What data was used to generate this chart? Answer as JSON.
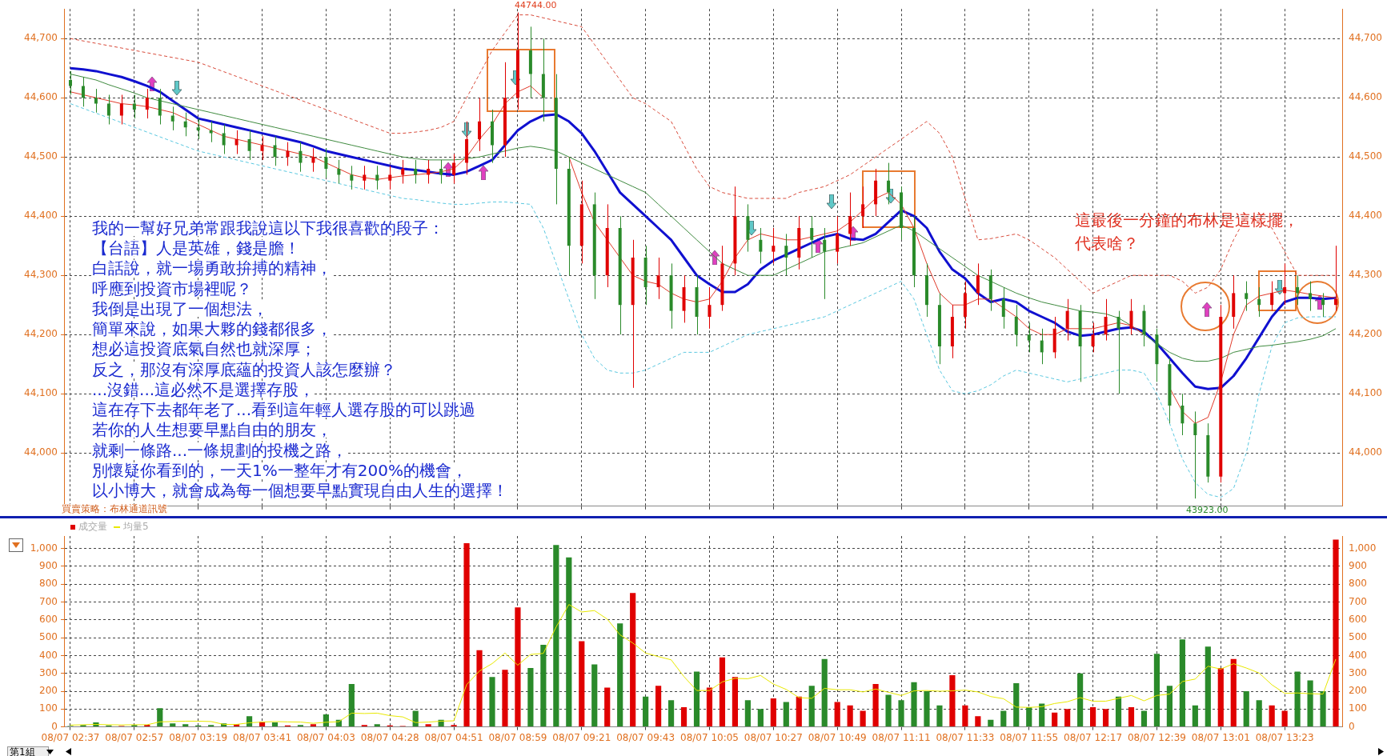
{
  "chart_data": [
    {
      "type": "candlestick",
      "categories": [
        null,
        null,
        null,
        null,
        null,
        null,
        null,
        null,
        null,
        null,
        null,
        null,
        null,
        null,
        null,
        null,
        null,
        null,
        null,
        null,
        null,
        null,
        null,
        null,
        null,
        null,
        null,
        null,
        null,
        null,
        null,
        null,
        null,
        null,
        null,
        null,
        null,
        null,
        null,
        null,
        null,
        null,
        null,
        null,
        null,
        null,
        null,
        null,
        null,
        null,
        null,
        null,
        null,
        null,
        null,
        null,
        null,
        null,
        null,
        null,
        null,
        null,
        null,
        null,
        null,
        null,
        null,
        null,
        null,
        null,
        null,
        null,
        null,
        null,
        null,
        null,
        null,
        null,
        null,
        null,
        null,
        null,
        null,
        null,
        null,
        null,
        null,
        null,
        null,
        null,
        null,
        null,
        null,
        null,
        null,
        null,
        null,
        null,
        null,
        null
      ],
      "ohlc": [
        [
          44630,
          44645,
          44605,
          44620
        ],
        [
          44620,
          44635,
          44585,
          44600
        ],
        [
          44600,
          44615,
          44575,
          44590
        ],
        [
          44590,
          44605,
          44555,
          44570
        ],
        [
          44570,
          44605,
          44555,
          44590
        ],
        [
          44590,
          44605,
          44565,
          44580
        ],
        [
          44580,
          44615,
          44565,
          44600
        ],
        [
          44600,
          44615,
          44555,
          44570
        ],
        [
          44570,
          44585,
          44545,
          44560
        ],
        [
          44560,
          44575,
          44535,
          44550
        ],
        [
          44550,
          44565,
          44530,
          44545
        ],
        [
          44545,
          44560,
          44525,
          44540
        ],
        [
          44540,
          44555,
          44505,
          44520
        ],
        [
          44520,
          44545,
          44505,
          44530
        ],
        [
          44530,
          44545,
          44495,
          44510
        ],
        [
          44510,
          44535,
          44495,
          44520
        ],
        [
          44520,
          44535,
          44485,
          44500
        ],
        [
          44500,
          44525,
          44485,
          44510
        ],
        [
          44510,
          44525,
          44475,
          44490
        ],
        [
          44490,
          44515,
          44475,
          44500
        ],
        [
          44500,
          44515,
          44465,
          44480
        ],
        [
          44480,
          44495,
          44455,
          44470
        ],
        [
          44470,
          44485,
          44445,
          44460
        ],
        [
          44460,
          44485,
          44445,
          44470
        ],
        [
          44470,
          44485,
          44445,
          44460
        ],
        [
          44460,
          44485,
          44445,
          44470
        ],
        [
          44470,
          44495,
          44455,
          44480
        ],
        [
          44480,
          44495,
          44455,
          44470
        ],
        [
          44470,
          44495,
          44455,
          44480
        ],
        [
          44480,
          44495,
          44455,
          44470
        ],
        [
          44470,
          44505,
          44455,
          44490
        ],
        [
          44490,
          44560,
          44470,
          44530
        ],
        [
          44530,
          44600,
          44510,
          44560
        ],
        [
          44560,
          44580,
          44490,
          44520
        ],
        [
          44520,
          44660,
          44500,
          44600
        ],
        [
          44600,
          44744,
          44580,
          44680
        ],
        [
          44680,
          44720,
          44600,
          44640
        ],
        [
          44640,
          44700,
          44560,
          44600
        ],
        [
          44600,
          44640,
          44420,
          44480
        ],
        [
          44480,
          44500,
          44300,
          44350
        ],
        [
          44350,
          44460,
          44320,
          44420
        ],
        [
          44420,
          44440,
          44260,
          44300
        ],
        [
          44300,
          44420,
          44280,
          44380
        ],
        [
          44380,
          44400,
          44200,
          44250
        ],
        [
          44250,
          44360,
          44110,
          44330
        ],
        [
          44330,
          44350,
          44250,
          44280
        ],
        [
          44280,
          44330,
          44260,
          44300
        ],
        [
          44300,
          44320,
          44210,
          44240
        ],
        [
          44240,
          44300,
          44220,
          44280
        ],
        [
          44280,
          44300,
          44200,
          44230
        ],
        [
          44230,
          44280,
          44210,
          44250
        ],
        [
          44250,
          44350,
          44240,
          44320
        ],
        [
          44320,
          44450,
          44300,
          44400
        ],
        [
          44400,
          44420,
          44340,
          44360
        ],
        [
          44360,
          44380,
          44320,
          44340
        ],
        [
          44340,
          44380,
          44320,
          44350
        ],
        [
          44350,
          44370,
          44300,
          44330
        ],
        [
          44330,
          44400,
          44310,
          44380
        ],
        [
          44380,
          44400,
          44330,
          44360
        ],
        [
          44360,
          44380,
          44260,
          44340
        ],
        [
          44340,
          44400,
          44320,
          44370
        ],
        [
          44370,
          44440,
          44350,
          44400
        ],
        [
          44400,
          44450,
          44380,
          44420
        ],
        [
          44420,
          44480,
          44400,
          44460
        ],
        [
          44460,
          44490,
          44420,
          44440
        ],
        [
          44440,
          44450,
          44360,
          44380
        ],
        [
          44380,
          44400,
          44280,
          44300
        ],
        [
          44300,
          44320,
          44230,
          44250
        ],
        [
          44250,
          44270,
          44150,
          44180
        ],
        [
          44180,
          44250,
          44160,
          44230
        ],
        [
          44230,
          44290,
          44210,
          44270
        ],
        [
          44270,
          44320,
          44250,
          44300
        ],
        [
          44300,
          44310,
          44240,
          44260
        ],
        [
          44260,
          44280,
          44210,
          44230
        ],
        [
          44230,
          44250,
          44180,
          44200
        ],
        [
          44200,
          44220,
          44170,
          44190
        ],
        [
          44190,
          44210,
          44150,
          44170
        ],
        [
          44170,
          44230,
          44160,
          44210
        ],
        [
          44210,
          44260,
          44190,
          44240
        ],
        [
          44240,
          44250,
          44120,
          44180
        ],
        [
          44180,
          44220,
          44170,
          44200
        ],
        [
          44200,
          44260,
          44190,
          44230
        ],
        [
          44230,
          44240,
          44100,
          44210
        ],
        [
          44210,
          44260,
          44200,
          44240
        ],
        [
          44240,
          44250,
          44180,
          44200
        ],
        [
          44200,
          44210,
          44120,
          44150
        ],
        [
          44150,
          44160,
          44050,
          44080
        ],
        [
          44080,
          44100,
          44030,
          44050
        ],
        [
          44050,
          44070,
          43923,
          44030
        ],
        [
          44030,
          44050,
          43950,
          43960
        ],
        [
          43960,
          44250,
          43950,
          44230
        ],
        [
          44230,
          44300,
          44210,
          44270
        ],
        [
          44270,
          44290,
          44240,
          44260
        ],
        [
          44260,
          44280,
          44230,
          44250
        ],
        [
          44250,
          44290,
          44240,
          44270
        ],
        [
          44270,
          44320,
          44250,
          44280
        ],
        [
          44280,
          44300,
          44250,
          44270
        ],
        [
          44270,
          44290,
          44240,
          44260
        ],
        [
          44260,
          44270,
          44230,
          44250
        ],
        [
          44250,
          44350,
          44240,
          44260
        ]
      ],
      "colors": [
        "#2a8a2a",
        "#2a8a2a",
        "#2a8a2a",
        "#2a8a2a",
        "#e00000",
        "#2a8a2a",
        "#e00000",
        "#2a8a2a",
        "#2a8a2a",
        "#2a8a2a",
        "#2a8a2a",
        "#2a8a2a",
        "#2a8a2a",
        "#e00000",
        "#2a8a2a",
        "#e00000",
        "#2a8a2a",
        "#e00000",
        "#2a8a2a",
        "#e00000",
        "#2a8a2a",
        "#2a8a2a",
        "#2a8a2a",
        "#e00000",
        "#2a8a2a",
        "#e00000",
        "#e00000",
        "#2a8a2a",
        "#e00000",
        "#2a8a2a",
        "#e00000",
        "#e00000",
        "#e00000",
        "#2a8a2a",
        "#e00000",
        "#e00000",
        "#2a8a2a",
        "#2a8a2a",
        "#2a8a2a",
        "#2a8a2a",
        "#e00000",
        "#2a8a2a",
        "#e00000",
        "#2a8a2a",
        "#e00000",
        "#2a8a2a",
        "#e00000",
        "#2a8a2a",
        "#e00000",
        "#2a8a2a",
        "#e00000",
        "#e00000",
        "#e00000",
        "#2a8a2a",
        "#2a8a2a",
        "#e00000",
        "#2a8a2a",
        "#e00000",
        "#2a8a2a",
        "#2a8a2a",
        "#e00000",
        "#e00000",
        "#e00000",
        "#e00000",
        "#2a8a2a",
        "#2a8a2a",
        "#2a8a2a",
        "#2a8a2a",
        "#2a8a2a",
        "#e00000",
        "#e00000",
        "#e00000",
        "#2a8a2a",
        "#2a8a2a",
        "#2a8a2a",
        "#2a8a2a",
        "#2a8a2a",
        "#e00000",
        "#e00000",
        "#2a8a2a",
        "#e00000",
        "#e00000",
        "#2a8a2a",
        "#e00000",
        "#2a8a2a",
        "#2a8a2a",
        "#2a8a2a",
        "#2a8a2a",
        "#2a8a2a",
        "#2a8a2a",
        "#e00000",
        "#e00000",
        "#2a8a2a",
        "#2a8a2a",
        "#e00000",
        "#e00000",
        "#2a8a2a",
        "#2a8a2a",
        "#2a8a2a",
        "#e00000"
      ],
      "series": [
        {
          "type": "line",
          "color": "#1010d0",
          "values": [
            44650,
            44648,
            44645,
            44640,
            44635,
            44628,
            44620,
            44610,
            44595,
            44580,
            44565,
            44560,
            44555,
            44550,
            44545,
            44540,
            44535,
            44530,
            44525,
            44518,
            44510,
            44505,
            44500,
            44495,
            44490,
            44485,
            44480,
            44478,
            44475,
            44472,
            44470,
            44475,
            44485,
            44495,
            44520,
            44545,
            44560,
            44570,
            44572,
            44560,
            44540,
            44510,
            44475,
            44440,
            44420,
            44400,
            44380,
            44360,
            44330,
            44300,
            44285,
            44272,
            44272,
            44285,
            44310,
            44325,
            44335,
            44345,
            44355,
            44365,
            44370,
            44362,
            44360,
            44370,
            44390,
            44410,
            44400,
            44380,
            44340,
            44310,
            44295,
            44270,
            44255,
            44260,
            44255,
            44240,
            44230,
            44220,
            44205,
            44198,
            44200,
            44205,
            44210,
            44212,
            44205,
            44185,
            44160,
            44135,
            44112,
            44108,
            44110,
            44130,
            44160,
            44195,
            44230,
            44255,
            44262,
            44262,
            44260,
            44262
          ]
        },
        {
          "type": "line",
          "color": "#e03a2a",
          "values": [
            44610,
            44605,
            44600,
            44595,
            44590,
            44588,
            44585,
            44580,
            44575,
            44565,
            44555,
            44545,
            44535,
            44530,
            44525,
            44520,
            44515,
            44510,
            44505,
            44500,
            44490,
            44480,
            44470,
            44465,
            44462,
            44465,
            44468,
            44470,
            44472,
            44475,
            44480,
            44500,
            44530,
            44555,
            44590,
            44610,
            44620,
            44600,
            null,
            44500,
            44440,
            44390,
            44360,
            44330,
            44300,
            44290,
            44285,
            44270,
            44260,
            44255,
            44260,
            44290,
            44330,
            44360,
            44370,
            44365,
            44360,
            44360,
            44365,
            44370,
            44375,
            44390,
            44410,
            44430,
            44440,
            44420,
            44380,
            44320,
            44270,
            44250,
            44250,
            44260,
            44260,
            44245,
            44230,
            44210,
            44200,
            44200,
            44210,
            44210,
            44210,
            44215,
            44220,
            44215,
            44200,
            null,
            44110,
            44070,
            44050,
            44060,
            44120,
            44200,
            44250,
            44265,
            44270,
            44275,
            44272,
            44268,
            44265,
            44262
          ]
        },
        {
          "type": "line",
          "color": "#3f8a3f",
          "values": [
            44640,
            44635,
            44630,
            44622,
            44615,
            44608,
            44600,
            44595,
            44590,
            44585,
            44580,
            44575,
            44570,
            44565,
            44560,
            44555,
            44550,
            44545,
            44540,
            44535,
            44530,
            44525,
            44520,
            44515,
            44510,
            44505,
            44500,
            44497,
            44495,
            44495,
            44495,
            44497,
            44500,
            44505,
            44510,
            44515,
            44518,
            44515,
            44510,
            44500,
            44490,
            44480,
            44470,
            44460,
            44450,
            44440,
            44420,
            44400,
            44380,
            44360,
            44340,
            44320,
            44310,
            44300,
            44300,
            44300,
            44310,
            44320,
            44330,
            44340,
            44345,
            44350,
            44355,
            44365,
            44375,
            44385,
            44375,
            44360,
            44345,
            44330,
            44315,
            44300,
            44290,
            44280,
            44270,
            44262,
            44255,
            44250,
            44245,
            44240,
            44238,
            44235,
            44228,
            44215,
            44200,
            44185,
            44170,
            44160,
            44155,
            44155,
            44160,
            44170,
            44175,
            44180,
            44182,
            44185,
            44188,
            44192,
            44198,
            44210
          ]
        },
        {
          "type": "line",
          "color": "#d84a3a",
          "line_style": "dashed",
          "values": [
            44700,
            44696,
            44692,
            44688,
            44684,
            44680,
            44676,
            44672,
            44668,
            44664,
            44660,
            44652,
            44644,
            44636,
            44628,
            44620,
            44612,
            44604,
            44596,
            44588,
            44580,
            44572,
            44564,
            44556,
            44548,
            44540,
            44540,
            44542,
            44545,
            44550,
            44560,
            44600,
            44640,
            44680,
            44710,
            44740,
            44740,
            44735,
            44730,
            44725,
            44720,
            44690,
            44660,
            44630,
            44600,
            44590,
            44575,
            44560,
            44520,
            44480,
            44450,
            44440,
            44435,
            44430,
            44430,
            44430,
            44430,
            44440,
            44445,
            44450,
            44460,
            44470,
            44485,
            44500,
            44515,
            44530,
            44545,
            44560,
            44540,
            44500,
            44430,
            44360,
            44362,
            44366,
            44370,
            44360,
            44345,
            44330,
            44310,
            44290,
            44270,
            44280,
            44290,
            44300,
            44300,
            44300,
            44300,
            44290,
            44270,
            44280,
            44310,
            44360,
            44400,
            44390,
            44380,
            44340,
            44300,
            44300,
            44300,
            44300
          ]
        },
        {
          "type": "line",
          "color": "#5ac8e0",
          "line_style": "dashed",
          "values": [
            44590,
            44582,
            44574,
            44566,
            44558,
            44550,
            44542,
            44534,
            44526,
            44518,
            44510,
            44505,
            44500,
            44495,
            44490,
            44485,
            44480,
            44475,
            44470,
            44465,
            44460,
            44455,
            44450,
            44445,
            44440,
            44435,
            44430,
            44428,
            44425,
            44422,
            44420,
            44420,
            44422,
            44424,
            44424,
            44422,
            44420,
            44380,
            44320,
            44260,
            44200,
            44160,
            44140,
            44135,
            44135,
            44140,
            44150,
            44160,
            44170,
            44170,
            44170,
            44180,
            44190,
            44200,
            44205,
            44210,
            44215,
            44220,
            44225,
            44230,
            44240,
            44250,
            44260,
            44270,
            44280,
            44290,
            44260,
            44200,
            44140,
            44105,
            44100,
            44105,
            44115,
            44130,
            44140,
            44135,
            44130,
            44125,
            44120,
            44125,
            44130,
            44135,
            44140,
            44140,
            44135,
            44100,
            44050,
            43990,
            43950,
            43930,
            43925,
            43940,
            44000,
            44100,
            44180,
            44220,
            44228,
            44230,
            44230,
            44230
          ]
        }
      ],
      "ylim": [
        43910,
        44750
      ],
      "yticks": [
        {
          "value": 44000,
          "label": "44,000"
        },
        {
          "value": 44100,
          "label": "44,100"
        },
        {
          "value": 44200,
          "label": "44,200"
        },
        {
          "value": 44300,
          "label": "44,300"
        },
        {
          "value": 44400,
          "label": "44,400"
        },
        {
          "value": 44500,
          "label": "44,500"
        },
        {
          "value": 44600,
          "label": "44,600"
        },
        {
          "value": 44700,
          "label": "44,700"
        }
      ],
      "y2lim": [
        43910,
        44750
      ],
      "y2ticks": [
        {
          "value": 44000,
          "label": "44,000"
        },
        {
          "value": 44100,
          "label": "44,100"
        },
        {
          "value": 44200,
          "label": "44,200"
        },
        {
          "value": 44300,
          "label": "44,300"
        },
        {
          "value": 44400,
          "label": "44,400"
        },
        {
          "value": 44500,
          "label": "44,500"
        },
        {
          "value": 44600,
          "label": "44,600"
        },
        {
          "value": 44700,
          "label": "44,700"
        }
      ],
      "grid": true,
      "tick_labels": "y",
      "annotations": [
        "我的一幫好兄弟常跟我說這以下我很喜歡的段子：",
        "【台語】人是英雄，錢是膽！",
        "白話說，就一場勇敢拚搏的精神，",
        "呼應到投資市場裡呢？",
        "我倒是出現了一個想法，",
        "簡單來說，如果大夥的錢都很多，",
        "想必這投資底氣自然也就深厚；",
        "反之，那沒有深厚底蘊的投資人該怎麼辦？",
        "...沒錯...這必然不是選擇存股，",
        "這在存下去都年老了...看到這年輕人選存股的可以跳過",
        "若你的人生想要早點自由的朋友，",
        "就剩一條路...一條規劃的投機之路，",
        "別懷疑你看到的，一天1%一整年才有200%的機會，",
        "以小博大，就會成為每一個想要早點實現自由人生的選擇！",
        "44744.00",
        "43923.00",
        "買賣策略：布林通道訊號",
        "這最後一分鐘的布林是這樣擺，",
        "代表啥？"
      ]
    },
    {
      "type": "bar",
      "categories": [
        "08/07 02:37",
        null,
        null,
        null,
        null,
        "08/07 02:57",
        null,
        null,
        null,
        null,
        "08/07 03:19",
        null,
        null,
        null,
        null,
        "08/07 03:41",
        null,
        null,
        null,
        null,
        "08/07 04:03",
        null,
        null,
        null,
        null,
        "08/07 04:28",
        null,
        null,
        null,
        null,
        "08/07 04:51",
        null,
        null,
        null,
        null,
        "08/07 08:59",
        null,
        null,
        null,
        null,
        "08/07 09:21",
        null,
        null,
        null,
        null,
        "08/07 09:43",
        null,
        null,
        null,
        null,
        "08/07 10:05",
        null,
        null,
        null,
        null,
        "08/07 10:27",
        null,
        null,
        null,
        null,
        "08/07 10:49",
        null,
        null,
        null,
        null,
        "08/07 11:11",
        null,
        null,
        null,
        null,
        "08/07 11:33",
        null,
        null,
        null,
        null,
        "08/07 11:55",
        null,
        null,
        null,
        null,
        "08/07 12:17",
        null,
        null,
        null,
        null,
        "08/07 12:39",
        null,
        null,
        null,
        null,
        "08/07 13:01",
        null,
        null,
        null,
        null,
        "08/07 13:23",
        null,
        null,
        null,
        null
      ],
      "series": [
        {
          "name": "成交量",
          "color": "#e00000",
          "colors": [
            "#2a8a2a",
            "#2a8a2a",
            "#2a8a2a",
            "#2a8a2a",
            "#e00000",
            "#2a8a2a",
            "#e00000",
            "#2a8a2a",
            "#2a8a2a",
            "#2a8a2a",
            "#2a8a2a",
            "#2a8a2a",
            "#2a8a2a",
            "#e00000",
            "#2a8a2a",
            "#e00000",
            "#2a8a2a",
            "#e00000",
            "#2a8a2a",
            "#e00000",
            "#2a8a2a",
            "#2a8a2a",
            "#2a8a2a",
            "#e00000",
            "#2a8a2a",
            "#e00000",
            "#e00000",
            "#2a8a2a",
            "#e00000",
            "#2a8a2a",
            "#e00000",
            "#e00000",
            "#e00000",
            "#2a8a2a",
            "#e00000",
            "#e00000",
            "#2a8a2a",
            "#2a8a2a",
            "#2a8a2a",
            "#2a8a2a",
            "#e00000",
            "#2a8a2a",
            "#e00000",
            "#2a8a2a",
            "#e00000",
            "#2a8a2a",
            "#e00000",
            "#2a8a2a",
            "#e00000",
            "#2a8a2a",
            "#e00000",
            "#e00000",
            "#e00000",
            "#2a8a2a",
            "#2a8a2a",
            "#e00000",
            "#2a8a2a",
            "#e00000",
            "#2a8a2a",
            "#2a8a2a",
            "#e00000",
            "#e00000",
            "#e00000",
            "#e00000",
            "#2a8a2a",
            "#2a8a2a",
            "#2a8a2a",
            "#2a8a2a",
            "#2a8a2a",
            "#e00000",
            "#e00000",
            "#e00000",
            "#2a8a2a",
            "#2a8a2a",
            "#2a8a2a",
            "#2a8a2a",
            "#2a8a2a",
            "#e00000",
            "#e00000",
            "#2a8a2a",
            "#e00000",
            "#e00000",
            "#2a8a2a",
            "#e00000",
            "#2a8a2a",
            "#2a8a2a",
            "#2a8a2a",
            "#2a8a2a",
            "#2a8a2a",
            "#2a8a2a",
            "#e00000",
            "#e00000",
            "#2a8a2a",
            "#2a8a2a",
            "#e00000",
            "#e00000",
            "#2a8a2a",
            "#2a8a2a",
            "#2a8a2a",
            "#e00000"
          ],
          "values": [
            5,
            10,
            25,
            8,
            5,
            10,
            12,
            105,
            20,
            15,
            8,
            10,
            20,
            15,
            60,
            30,
            25,
            8,
            10,
            15,
            70,
            40,
            240,
            10,
            15,
            8,
            5,
            90,
            15,
            40,
            10,
            1030,
            430,
            280,
            320,
            670,
            330,
            460,
            1020,
            950,
            480,
            350,
            220,
            580,
            750,
            170,
            230,
            150,
            110,
            310,
            220,
            390,
            280,
            150,
            100,
            160,
            140,
            170,
            230,
            380,
            140,
            120,
            90,
            240,
            180,
            150,
            250,
            200,
            120,
            290,
            120,
            60,
            40,
            90,
            245,
            110,
            130,
            80,
            100,
            300,
            110,
            100,
            170,
            110,
            90,
            410,
            230,
            490,
            120,
            450,
            330,
            380,
            200,
            150,
            120,
            90,
            310,
            260,
            200,
            1050
          ]
        },
        {
          "name": "均量5",
          "type": "line",
          "color": "#e8e800",
          "values": [
            10,
            12,
            14,
            12,
            11,
            12,
            12,
            28,
            30,
            32,
            32,
            30,
            14,
            14,
            23,
            27,
            30,
            28,
            27,
            20,
            26,
            29,
            77,
            75,
            77,
            63,
            56,
            24,
            27,
            32,
            34,
            237,
            313,
            355,
            414,
            346,
            406,
            412,
            560,
            686,
            644,
            652,
            604,
            516,
            470,
            414,
            394,
            376,
            282,
            204,
            204,
            252,
            272,
            270,
            288,
            240,
            210,
            164,
            160,
            216,
            208,
            208,
            196,
            212,
            194,
            176,
            202,
            204,
            200,
            202,
            206,
            196,
            170,
            158,
            111,
            109,
            113,
            131,
            141,
            164,
            144,
            144,
            160,
            176,
            146,
            176,
            184,
            254,
            268,
            340,
            324,
            354,
            330,
            302,
            236,
            188,
            190,
            186,
            184,
            380
          ]
        }
      ],
      "ylim": [
        0,
        1070
      ],
      "yticks": [
        0,
        100,
        200,
        300,
        400,
        500,
        600,
        700,
        800,
        900,
        {
          "value": 1000,
          "label": "1,000"
        }
      ],
      "y2lim": [
        0,
        1070
      ],
      "y2ticks": [
        0,
        100,
        200,
        300,
        400,
        500,
        600,
        700,
        800,
        900,
        {
          "value": 1000,
          "label": "1,000"
        }
      ],
      "grid": true,
      "legend": "top left",
      "annotations": [
        "第1組"
      ]
    }
  ]
}
